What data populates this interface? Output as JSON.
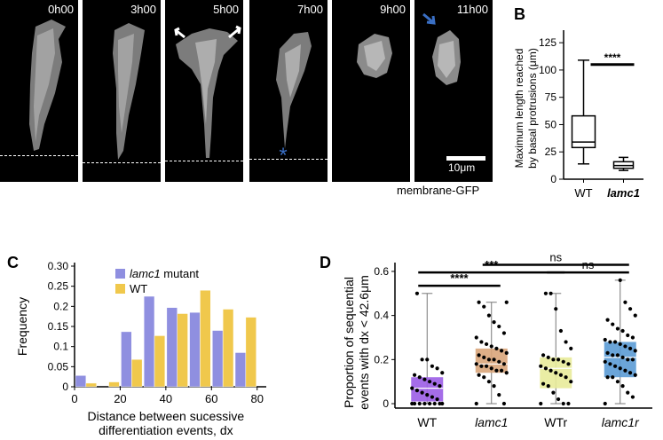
{
  "panel_a": {
    "letter": "A",
    "frames": [
      {
        "time": "0h00"
      },
      {
        "time": "3h00"
      },
      {
        "time": "5h00"
      },
      {
        "time": "7h00"
      },
      {
        "time": "9h00"
      },
      {
        "time": "11h00"
      }
    ],
    "scale_label": "10μm",
    "caption": "membrane-GFP",
    "colors": {
      "white_arrow": "#ffffff",
      "blue_arrow": "#3a6fc4",
      "asterisk": "#3a6fc4"
    }
  },
  "chart_data": [
    {
      "panel": "B",
      "type": "box",
      "ylabel": "Maximum length reached by basal protrusions (μm)",
      "ylabel_lines": [
        "Maximum length reached",
        "by basal protrusions (μm)"
      ],
      "ylim": [
        0,
        130
      ],
      "yticks": [
        0,
        25,
        50,
        75,
        100,
        125
      ],
      "categories": [
        "WT",
        "lamc1"
      ],
      "boxes": [
        {
          "category": "WT",
          "min": 14,
          "q1": 29,
          "median": 34,
          "q3": 58,
          "max": 109
        },
        {
          "category": "lamc1",
          "min": 8,
          "q1": 10,
          "median": 12.5,
          "q3": 16,
          "max": 20
        }
      ],
      "significance": [
        {
          "from": "WT",
          "to": "lamc1",
          "label": "****"
        }
      ]
    },
    {
      "panel": "C",
      "type": "bar",
      "xlabel": "Distance between sucessive differentiation events, dx",
      "xlabel_lines": [
        "Distance between sucessive",
        "differentiation events, dx"
      ],
      "ylabel": "Frequency",
      "xlim": [
        0,
        84
      ],
      "xticks": [
        0,
        20,
        40,
        60,
        80
      ],
      "ylim": [
        0,
        0.3
      ],
      "yticks": [
        "0",
        "0.05",
        "0.1",
        "0.15",
        "0.2",
        "0.25",
        "0.30"
      ],
      "bin_centers": [
        5,
        15,
        25,
        35,
        45,
        55,
        65,
        75
      ],
      "bin_width": 10,
      "legend": {
        "position": "top-left",
        "entries": [
          "lamc1 mutant",
          "WT"
        ]
      },
      "series": [
        {
          "name": "lamc1 mutant",
          "color": "#8f8fe0",
          "values": [
            0.028,
            0.0,
            0.137,
            0.225,
            0.197,
            0.185,
            0.14,
            0.085
          ]
        },
        {
          "name": "WT",
          "color": "#f0c84c",
          "values": [
            0.009,
            0.012,
            0.068,
            0.127,
            0.182,
            0.24,
            0.193,
            0.173
          ]
        }
      ]
    },
    {
      "panel": "D",
      "type": "box",
      "ylabel": "Proportion of sequential events with dx < 42.6μm",
      "ylabel_lines": [
        "Proportion of sequential",
        "events with dx < 42.6μm"
      ],
      "ylim": [
        -0.02,
        0.64
      ],
      "yticks": [
        "0",
        "0.2",
        "0.4",
        "0.6"
      ],
      "categories": [
        "WT",
        "lamc1",
        "WTr",
        "lamc1r"
      ],
      "boxes": [
        {
          "category": "WT",
          "color": "#9b5de5",
          "min": 0,
          "q1": 0.01,
          "median": 0.07,
          "q3": 0.12,
          "max": 0.5
        },
        {
          "category": "lamc1",
          "color": "#d9a57a",
          "min": 0,
          "q1": 0.14,
          "median": 0.18,
          "q3": 0.25,
          "max": 0.46
        },
        {
          "category": "WTr",
          "color": "#e8eb9a",
          "min": 0,
          "q1": 0.07,
          "median": 0.16,
          "q3": 0.21,
          "max": 0.5
        },
        {
          "category": "lamc1r",
          "color": "#5b9bd5",
          "min": 0,
          "q1": 0.12,
          "median": 0.21,
          "q3": 0.28,
          "max": 0.56
        }
      ],
      "points": [
        [
          0,
          0,
          0,
          0,
          0,
          0,
          0,
          0,
          0.02,
          0.03,
          0.04,
          0.05,
          0.06,
          0.07,
          0.08,
          0.09,
          0.1,
          0.11,
          0.12,
          0.13,
          0.14,
          0.16,
          0.17,
          0.2,
          0.2,
          0.5
        ],
        [
          0,
          0,
          0.04,
          0.08,
          0.1,
          0.12,
          0.13,
          0.14,
          0.15,
          0.15,
          0.16,
          0.17,
          0.17,
          0.18,
          0.18,
          0.19,
          0.2,
          0.2,
          0.21,
          0.22,
          0.23,
          0.24,
          0.25,
          0.26,
          0.27,
          0.28,
          0.3,
          0.32,
          0.35,
          0.37,
          0.4,
          0.44,
          0.46,
          0.46
        ],
        [
          0,
          0,
          0,
          0.02,
          0.05,
          0.08,
          0.09,
          0.1,
          0.12,
          0.13,
          0.14,
          0.15,
          0.16,
          0.17,
          0.18,
          0.19,
          0.2,
          0.2,
          0.21,
          0.22,
          0.25,
          0.28,
          0.33,
          0.43,
          0.5,
          0.5
        ],
        [
          0,
          0.03,
          0.05,
          0.08,
          0.1,
          0.12,
          0.12,
          0.13,
          0.14,
          0.15,
          0.16,
          0.17,
          0.18,
          0.19,
          0.2,
          0.2,
          0.21,
          0.22,
          0.22,
          0.23,
          0.24,
          0.25,
          0.26,
          0.27,
          0.28,
          0.28,
          0.29,
          0.3,
          0.31,
          0.33,
          0.34,
          0.36,
          0.38,
          0.4,
          0.43,
          0.46,
          0.56
        ]
      ],
      "significance": [
        {
          "from": "WT",
          "to": "lamc1",
          "label": "****"
        },
        {
          "from": "WT",
          "to": "WTr",
          "label": "***"
        },
        {
          "from": "WTr",
          "to": "lamc1r",
          "label": "ns"
        },
        {
          "from": "lamc1",
          "to": "lamc1r",
          "label": "ns"
        }
      ]
    }
  ]
}
